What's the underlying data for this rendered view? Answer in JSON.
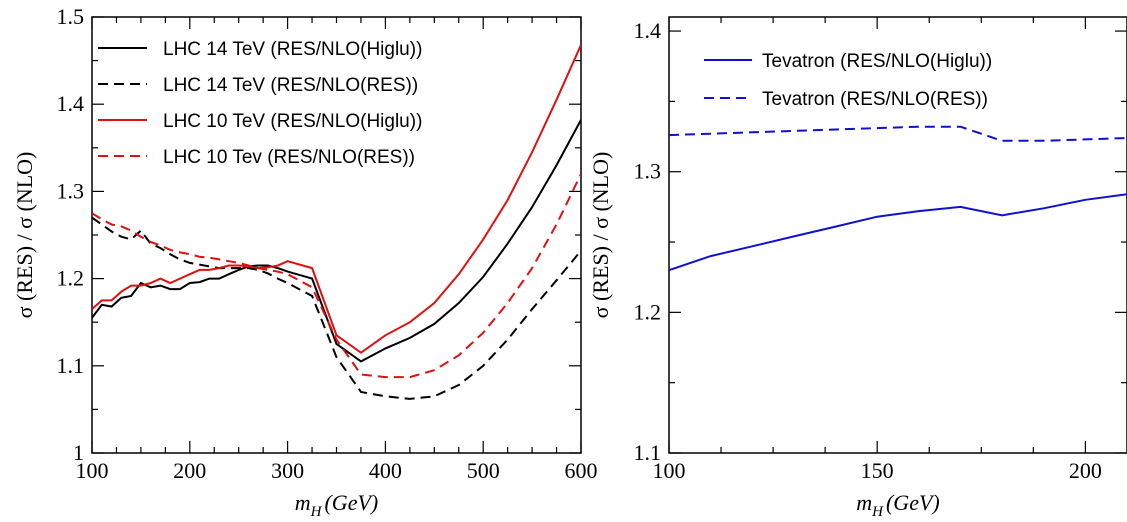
{
  "chart_data": [
    {
      "type": "line",
      "xlabel_main": "m",
      "xlabel_sub": "H",
      "xlabel_unit": "(GeV)",
      "ylabel": "σ (RES) / σ (NLO)",
      "xlim": [
        100,
        600
      ],
      "ylim": [
        1.0,
        1.5
      ],
      "xticks": [
        100,
        200,
        300,
        400,
        500,
        600
      ],
      "yticks": [
        1.0,
        1.1,
        1.2,
        1.3,
        1.4,
        1.5
      ],
      "ytick_labels": [
        "1",
        "1.1",
        "1.2",
        "1.3",
        "1.4",
        "1.5"
      ],
      "legend_position": "top-left",
      "series": [
        {
          "name": "LHC 14 TeV (RES/NLO(Higlu))",
          "color": "#000000",
          "dash": "solid",
          "x": [
            100,
            110,
            120,
            130,
            140,
            150,
            160,
            170,
            180,
            190,
            200,
            210,
            220,
            230,
            240,
            250,
            260,
            270,
            280,
            290,
            300,
            325,
            350,
            375,
            400,
            425,
            450,
            475,
            500,
            525,
            550,
            575,
            600
          ],
          "y": [
            1.155,
            1.17,
            1.168,
            1.178,
            1.18,
            1.195,
            1.19,
            1.192,
            1.188,
            1.188,
            1.195,
            1.196,
            1.2,
            1.2,
            1.205,
            1.21,
            1.214,
            1.215,
            1.215,
            1.212,
            1.208,
            1.2,
            1.125,
            1.105,
            1.12,
            1.132,
            1.148,
            1.172,
            1.202,
            1.24,
            1.282,
            1.33,
            1.382
          ]
        },
        {
          "name": "LHC 14 TeV (RES/NLO(RES))",
          "color": "#000000",
          "dash": "dashed",
          "x": [
            100,
            110,
            120,
            130,
            140,
            150,
            160,
            170,
            180,
            190,
            200,
            210,
            220,
            230,
            240,
            250,
            260,
            270,
            280,
            290,
            300,
            325,
            350,
            375,
            400,
            425,
            450,
            475,
            500,
            525,
            550,
            575,
            600
          ],
          "y": [
            1.27,
            1.262,
            1.254,
            1.248,
            1.245,
            1.255,
            1.24,
            1.235,
            1.228,
            1.222,
            1.218,
            1.216,
            1.214,
            1.212,
            1.212,
            1.212,
            1.212,
            1.21,
            1.206,
            1.2,
            1.195,
            1.18,
            1.11,
            1.07,
            1.065,
            1.062,
            1.065,
            1.078,
            1.1,
            1.13,
            1.165,
            1.198,
            1.232
          ]
        },
        {
          "name": "LHC 10 TeV (RES/NLO(Higlu))",
          "color": "#e01010",
          "dash": "solid",
          "x": [
            100,
            110,
            120,
            130,
            140,
            150,
            160,
            170,
            180,
            190,
            200,
            210,
            220,
            230,
            240,
            250,
            260,
            270,
            280,
            290,
            300,
            325,
            350,
            375,
            400,
            425,
            450,
            475,
            500,
            525,
            550,
            575,
            600
          ],
          "y": [
            1.165,
            1.175,
            1.175,
            1.185,
            1.192,
            1.192,
            1.195,
            1.2,
            1.195,
            1.2,
            1.205,
            1.21,
            1.21,
            1.212,
            1.215,
            1.215,
            1.214,
            1.212,
            1.213,
            1.215,
            1.22,
            1.212,
            1.135,
            1.115,
            1.135,
            1.15,
            1.172,
            1.205,
            1.245,
            1.29,
            1.345,
            1.405,
            1.468
          ]
        },
        {
          "name": "LHC 10 Tev (RES/NLO(RES))",
          "color": "#e01010",
          "dash": "dashed",
          "x": [
            100,
            110,
            120,
            130,
            140,
            150,
            160,
            170,
            180,
            190,
            200,
            210,
            220,
            230,
            240,
            250,
            260,
            270,
            280,
            290,
            300,
            325,
            350,
            375,
            400,
            425,
            450,
            475,
            500,
            525,
            550,
            575,
            600
          ],
          "y": [
            1.275,
            1.268,
            1.262,
            1.26,
            1.255,
            1.248,
            1.242,
            1.238,
            1.233,
            1.23,
            1.228,
            1.225,
            1.224,
            1.222,
            1.22,
            1.218,
            1.215,
            1.212,
            1.21,
            1.208,
            1.205,
            1.19,
            1.13,
            1.09,
            1.087,
            1.087,
            1.095,
            1.112,
            1.138,
            1.172,
            1.212,
            1.262,
            1.32
          ]
        }
      ]
    },
    {
      "type": "line",
      "xlabel_main": "m",
      "xlabel_sub": "H",
      "xlabel_unit": "(GeV)",
      "ylabel": "σ (RES) / σ (NLO)",
      "xlim": [
        100,
        210
      ],
      "ylim": [
        1.1,
        1.41
      ],
      "xticks": [
        100,
        150,
        200
      ],
      "yticks": [
        1.1,
        1.2,
        1.3,
        1.4
      ],
      "ytick_labels": [
        "1.1",
        "1.2",
        "1.3",
        "1.4"
      ],
      "legend_position": "top-left",
      "series": [
        {
          "name": "Tevatron (RES/NLO(Higlu))",
          "color": "#1010d0",
          "dash": "solid",
          "x": [
            100,
            110,
            120,
            130,
            140,
            150,
            160,
            170,
            180,
            190,
            200,
            210
          ],
          "y": [
            1.23,
            1.24,
            1.247,
            1.254,
            1.261,
            1.268,
            1.272,
            1.275,
            1.269,
            1.274,
            1.28,
            1.284
          ]
        },
        {
          "name": "Tevatron (RES/NLO(RES))",
          "color": "#1010d0",
          "dash": "dashed",
          "x": [
            100,
            110,
            120,
            130,
            140,
            150,
            160,
            170,
            180,
            190,
            200,
            210
          ],
          "y": [
            1.326,
            1.327,
            1.328,
            1.329,
            1.33,
            1.331,
            1.332,
            1.332,
            1.322,
            1.322,
            1.323,
            1.324
          ]
        }
      ]
    }
  ]
}
